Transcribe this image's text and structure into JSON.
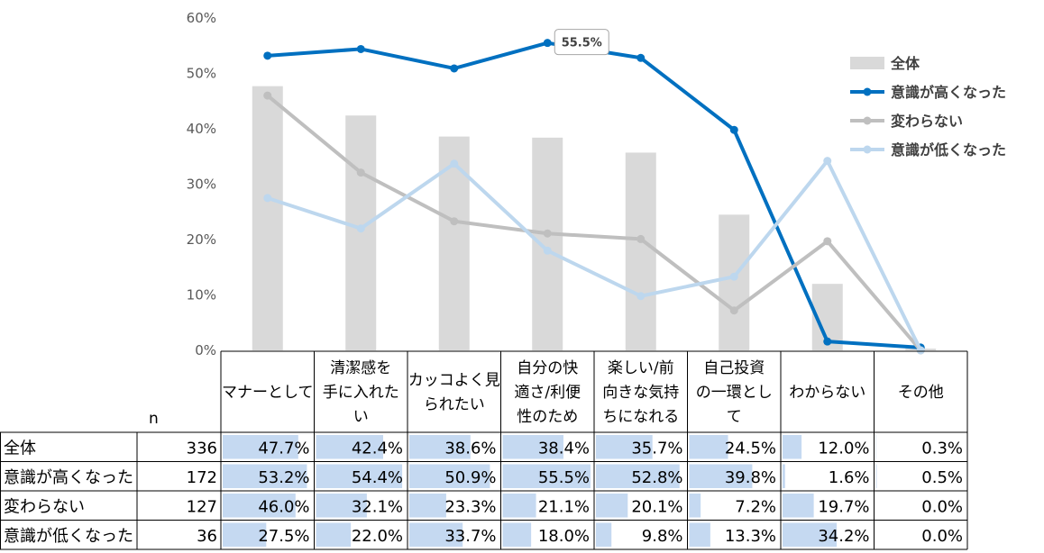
{
  "chart_data": {
    "type": "bar",
    "categories": [
      [
        "マナーとして"
      ],
      [
        "清潔感を",
        "手に入れた",
        "い"
      ],
      [
        "カッコよく見",
        "られたい"
      ],
      [
        "自分の快",
        "適さ/利便",
        "性のため"
      ],
      [
        "楽しい/前",
        "向きな気持",
        "ちになれる"
      ],
      [
        "自己投資",
        "の一環とし",
        "て"
      ],
      [
        "わからない"
      ],
      [
        "その他"
      ]
    ],
    "ylim": [
      0,
      60
    ],
    "yticks": [
      0,
      10,
      20,
      30,
      40,
      50,
      60
    ],
    "ytick_labels": [
      "0%",
      "10%",
      "20%",
      "30%",
      "40%",
      "50%",
      "60%"
    ],
    "n_label": "n",
    "series": [
      {
        "name": "全体",
        "kind": "bar",
        "n": 336,
        "color": "#d9d9d9",
        "values": [
          47.7,
          42.4,
          38.6,
          38.4,
          35.7,
          24.5,
          12.0,
          0.3
        ],
        "labels": [
          "47.7%",
          "42.4%",
          "38.6%",
          "38.4%",
          "35.7%",
          "24.5%",
          "12.0%",
          "0.3%"
        ]
      },
      {
        "name": "意識が高くなった",
        "kind": "line",
        "n": 172,
        "color": "#0070c0",
        "values": [
          53.2,
          54.4,
          50.9,
          55.5,
          52.8,
          39.8,
          1.6,
          0.5
        ],
        "labels": [
          "53.2%",
          "54.4%",
          "50.9%",
          "55.5%",
          "52.8%",
          "39.8%",
          "1.6%",
          "0.5%"
        ]
      },
      {
        "name": "変わらない",
        "kind": "line",
        "n": 127,
        "color": "#bfbfbf",
        "values": [
          46.0,
          32.1,
          23.3,
          21.1,
          20.1,
          7.2,
          19.7,
          0.0
        ],
        "labels": [
          "46.0%",
          "32.1%",
          "23.3%",
          "21.1%",
          "20.1%",
          "7.2%",
          "19.7%",
          "0.0%"
        ]
      },
      {
        "name": "意識が低くなった",
        "kind": "line",
        "n": 36,
        "color": "#bdd7ee",
        "values": [
          27.5,
          22.0,
          33.7,
          18.0,
          9.8,
          13.3,
          34.2,
          0.0
        ],
        "labels": [
          "27.5%",
          "22.0%",
          "33.7%",
          "18.0%",
          "9.8%",
          "13.3%",
          "34.2%",
          "0.0%"
        ]
      }
    ],
    "callout": {
      "series": 1,
      "index": 3,
      "text": "55.5%"
    },
    "legend_position": "right",
    "table_bar_color": "#c5d9f1",
    "grid": false
  }
}
